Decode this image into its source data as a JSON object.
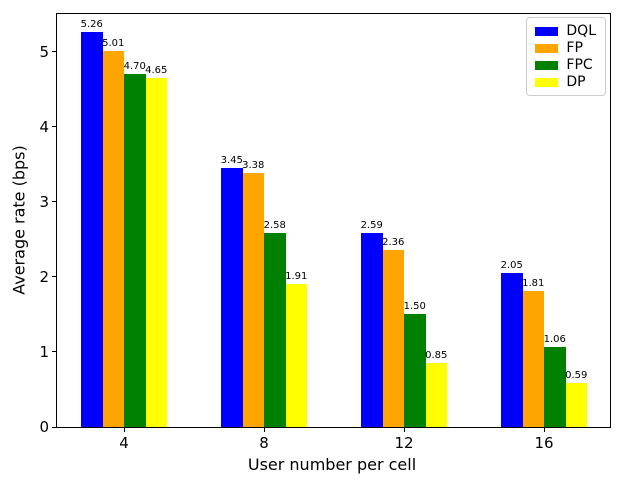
{
  "figure": {
    "xlabel": "User number per cell",
    "ylabel": "Average rate (bps)"
  },
  "chart_data": {
    "type": "bar",
    "title": "",
    "categories": [
      "4",
      "8",
      "12",
      "16"
    ],
    "series": [
      {
        "name": "DQL",
        "color": "#0000ff",
        "values": [
          5.26,
          3.45,
          2.59,
          2.05
        ]
      },
      {
        "name": "FP",
        "color": "#ffa500",
        "values": [
          5.01,
          3.38,
          2.36,
          1.81
        ]
      },
      {
        "name": "FPC",
        "color": "#008000",
        "values": [
          4.7,
          2.58,
          1.5,
          1.06
        ]
      },
      {
        "name": "DP",
        "color": "#ffff00",
        "values": [
          4.65,
          1.91,
          0.85,
          0.59
        ]
      }
    ],
    "xlabel": "User number per cell",
    "ylabel": "Average rate (bps)",
    "ylim": [
      0,
      5.5
    ],
    "yticks": [
      0,
      1,
      2,
      3,
      4,
      5
    ],
    "grid": false,
    "legend_position": "upper right",
    "bar_value_labels": true,
    "value_label_decimals": 2,
    "text_color": "#000000",
    "background_color": "#ffffff",
    "legend_border_color": "#cccccc"
  }
}
